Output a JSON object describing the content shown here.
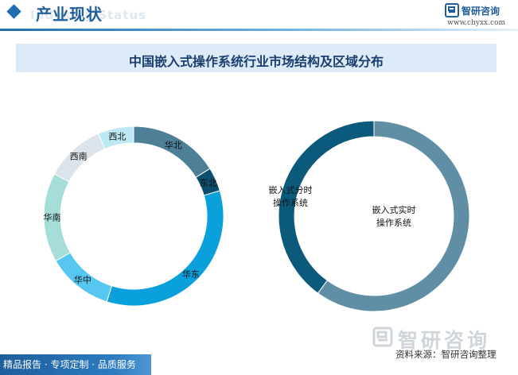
{
  "header": {
    "title": "产业现状",
    "ghost_text": "Industry Status",
    "brand_name": "智研咨询",
    "website": "www.chyxx.com"
  },
  "title": "中国嵌入式操作系统行业市场结构及区域分布",
  "chart_data": [
    {
      "type": "pie",
      "donut": true,
      "title": "",
      "categories": [
        "华北",
        "东北",
        "华东",
        "华中",
        "华南",
        "西南",
        "西北"
      ],
      "values": [
        15,
        4,
        32,
        11,
        15,
        10,
        6
      ],
      "colors": [
        "#4d7f96",
        "#0b4e6d",
        "#0aa0dc",
        "#55c7f0",
        "#a6ddd8",
        "#dbe4ea",
        "#bde9f5"
      ],
      "legend": "none"
    },
    {
      "type": "pie",
      "donut": true,
      "title": "",
      "categories": [
        "嵌入式实时操作系统",
        "嵌入式分时操作系统"
      ],
      "values": [
        60,
        40
      ],
      "colors": [
        "#5f8ea5",
        "#0b5a7c"
      ],
      "legend": "none"
    }
  ],
  "footer": {
    "watermark": "智研咨询",
    "source": "资料来源：智研咨询整理",
    "tagline": "精品报告 · 专项定制 · 品质服务"
  }
}
